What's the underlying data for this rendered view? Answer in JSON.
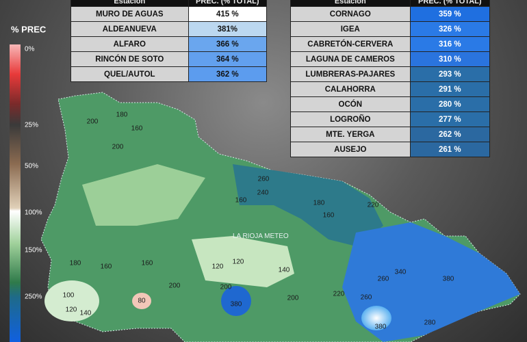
{
  "legend": {
    "title": "% PREC",
    "labels": [
      "0%",
      "25%",
      "50%",
      "100%",
      "150%",
      "250%"
    ]
  },
  "watermark": "LA RIOJA METEO",
  "table_left": {
    "header": [
      "Estación",
      "PREC. (% TOTAL)"
    ],
    "rows": [
      [
        "MURO DE AGUAS",
        "415 %"
      ],
      [
        "ALDEANUEVA",
        "381%"
      ],
      [
        "ALFARO",
        "366 %"
      ],
      [
        "RINCÓN DE SOTO",
        "364 %"
      ],
      [
        "QUEL/AUTOL",
        "362 %"
      ]
    ]
  },
  "table_right": {
    "header": [
      "Estación",
      "PREC. (% TOTAL)"
    ],
    "rows": [
      [
        "CORNAGO",
        "359 %"
      ],
      [
        "IGEA",
        "326 %"
      ],
      [
        "CABRETÓN-CERVERA",
        "316 %"
      ],
      [
        "LAGUNA DE CAMEROS",
        "310 %"
      ],
      [
        "LUMBRERAS-PAJARES",
        "293 %"
      ],
      [
        "CALAHORRA",
        "291 %"
      ],
      [
        "OCÓN",
        "280 %"
      ],
      [
        "LOGROÑO",
        "277 %"
      ],
      [
        "MTE. YERGA",
        "262 %"
      ],
      [
        "AUSEJO",
        "261 %"
      ]
    ]
  },
  "contour_labels": [
    "200",
    "180",
    "160",
    "200",
    "160",
    "260",
    "240",
    "180",
    "160",
    "220",
    "180",
    "160",
    "120",
    "120",
    "140",
    "160",
    "200",
    "100",
    "120",
    "140",
    "80",
    "200",
    "380",
    "260",
    "340",
    "380",
    "280",
    "380",
    "200",
    "220",
    "260"
  ]
}
